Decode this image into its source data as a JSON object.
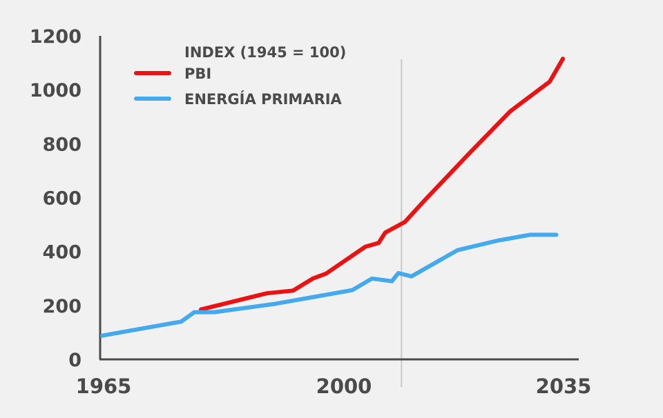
{
  "chart_data": {
    "type": "line",
    "legend_title": "INDEX (1945 = 100)",
    "legend_position": "top-left",
    "grid": false,
    "xlim": [
      1965,
      2037
    ],
    "ylim": [
      0,
      1200
    ],
    "x_ticks": [
      1965,
      2000,
      2035
    ],
    "y_ticks": [
      0,
      200,
      400,
      600,
      800,
      1000,
      1200
    ],
    "projection_marker_x": 2011,
    "series": [
      {
        "name": "PBI",
        "color": "#ee1111",
        "points": [
          [
            1980,
            185
          ],
          [
            1990,
            245
          ],
          [
            1994,
            255
          ],
          [
            1997,
            300
          ],
          [
            1999,
            318
          ],
          [
            2005,
            418
          ],
          [
            2007,
            432
          ],
          [
            2008,
            470
          ],
          [
            2011,
            510
          ],
          [
            2014,
            590
          ],
          [
            2021,
            770
          ],
          [
            2027,
            920
          ],
          [
            2033,
            1030
          ],
          [
            2035,
            1115
          ]
        ]
      },
      {
        "name": "ENERGÍA PRIMARIA",
        "color": "#44aaf0",
        "points": [
          [
            1965,
            88
          ],
          [
            1977,
            140
          ],
          [
            1979,
            175
          ],
          [
            1982,
            175
          ],
          [
            1991,
            205
          ],
          [
            2003,
            257
          ],
          [
            2006,
            300
          ],
          [
            2009,
            290
          ],
          [
            2010,
            320
          ],
          [
            2012,
            308
          ],
          [
            2019,
            405
          ],
          [
            2025,
            440
          ],
          [
            2030,
            462
          ],
          [
            2034,
            462
          ]
        ]
      }
    ]
  }
}
